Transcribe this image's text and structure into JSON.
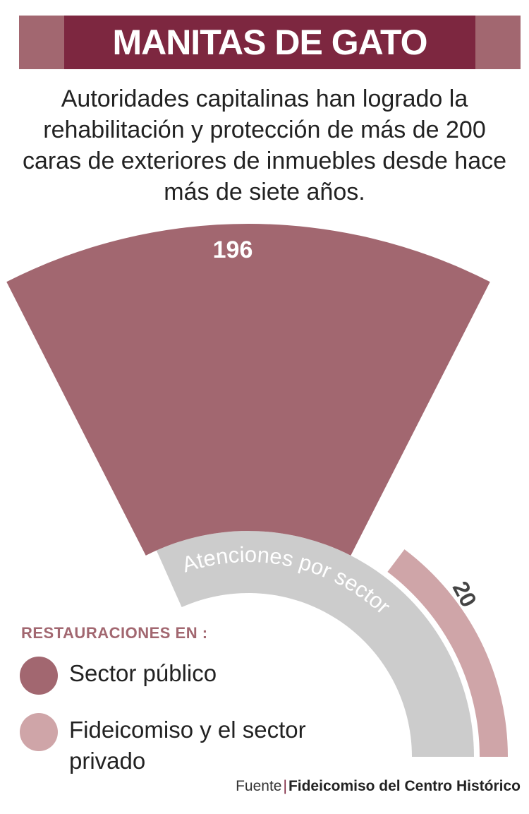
{
  "header": {
    "title": "MANITAS DE GATO"
  },
  "subtitle": "Autoridades capitalinas han logrado la rehabilitación y protección de más de 200 caras de exteriores de inmuebles desde hace más de siete años.",
  "chart_data": {
    "type": "pie",
    "title": "MANITAS DE GATO",
    "center_label": "Atenciones por sector",
    "series": [
      {
        "name": "Sector público",
        "value": 196,
        "color": "#a26770"
      },
      {
        "name": "Fideicomiso y el sector privado",
        "value": 20,
        "color": "#cfa5a8"
      }
    ],
    "legend_title": "RESTAURACIONES EN :",
    "legend_placement": "bottom-left"
  },
  "legend": {
    "title": "RESTAURACIONES EN :",
    "items": [
      {
        "label": "Sector público",
        "color": "#a26770"
      },
      {
        "label": "Fideicomiso y el sector privado",
        "color": "#cfa5a8"
      }
    ]
  },
  "source": {
    "prefix": "Fuente",
    "separator": "|",
    "name": "Fideicomiso del Centro Histórico"
  },
  "colors": {
    "banner": "#7d2740",
    "banner_side": "#a26770",
    "public": "#a26770",
    "private": "#cfa5a8",
    "center_band": "#cccccc"
  }
}
